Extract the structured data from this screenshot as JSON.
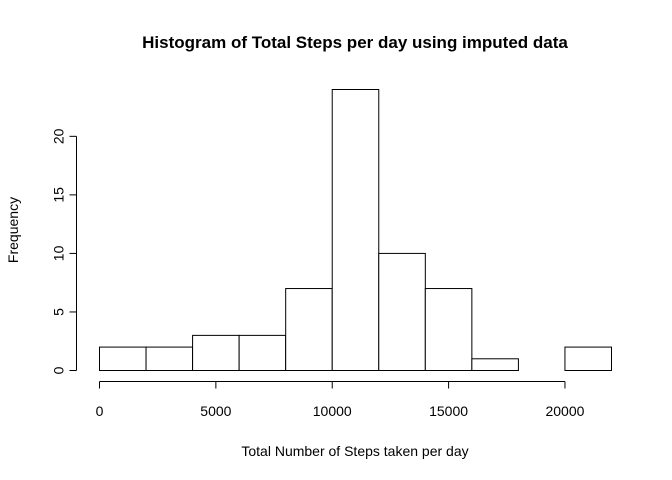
{
  "chart_data": {
    "type": "bar",
    "subtype": "histogram",
    "title": "Histogram of Total Steps per day using imputed data",
    "xlabel": "Total Number of Steps taken per day",
    "ylabel": "Frequency",
    "bins": [
      {
        "x0": 0,
        "x1": 2000,
        "count": 2
      },
      {
        "x0": 2000,
        "x1": 4000,
        "count": 2
      },
      {
        "x0": 4000,
        "x1": 6000,
        "count": 3
      },
      {
        "x0": 6000,
        "x1": 8000,
        "count": 3
      },
      {
        "x0": 8000,
        "x1": 10000,
        "count": 7
      },
      {
        "x0": 10000,
        "x1": 12000,
        "count": 24
      },
      {
        "x0": 12000,
        "x1": 14000,
        "count": 10
      },
      {
        "x0": 14000,
        "x1": 16000,
        "count": 7
      },
      {
        "x0": 16000,
        "x1": 18000,
        "count": 1
      },
      {
        "x0": 18000,
        "x1": 20000,
        "count": 0
      },
      {
        "x0": 20000,
        "x1": 22000,
        "count": 2
      }
    ],
    "x_ticks": [
      0,
      5000,
      10000,
      15000,
      20000
    ],
    "y_ticks": [
      0,
      5,
      10,
      15,
      20
    ],
    "xlim": [
      0,
      22000
    ],
    "ylim": [
      0,
      24
    ],
    "grid": false,
    "bar_fill": "#ffffff",
    "bar_stroke": "#000000"
  }
}
